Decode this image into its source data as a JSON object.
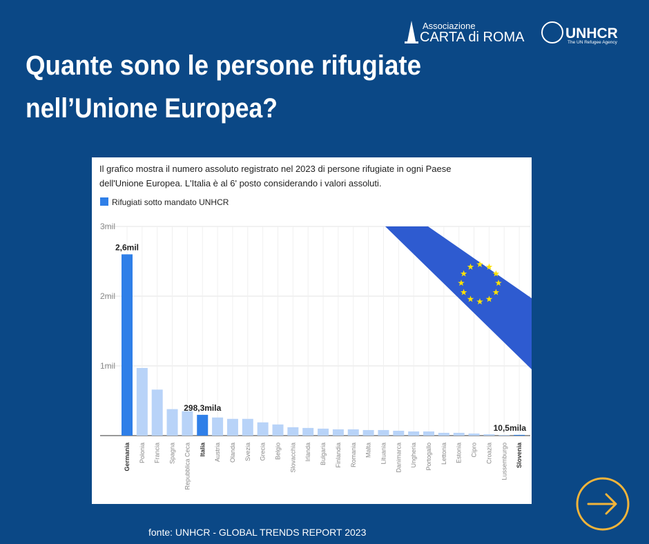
{
  "header": {
    "title": [
      "Quante sono le persone rifugiate",
      "nell’Unione Europea?"
    ]
  },
  "logos": {
    "association": "Associazione",
    "carta": "CARTA di ROMA",
    "unhcr": "UNHCR",
    "unhcr_tagline": "The UN Refugee Agency"
  },
  "chart_data": {
    "type": "bar",
    "subtitle": [
      "Il grafico mostra il numero assoluto registrato nel 2023 di persone rifugiate in ogni Paese",
      "dell'Unione Europea. L'Italia è al 6' posto considerando i valori assoluti."
    ],
    "categories": [
      "Germania",
      "Polonia",
      "Francia",
      "Spagna",
      "Repubblica Ceca",
      "Italia",
      "Austria",
      "Olanda",
      "Svezia",
      "Grecia",
      "Belgio",
      "Slovacchia",
      "Irlanda",
      "Bulgaria",
      "Finlandia",
      "Romania",
      "Malta",
      "Lituania",
      "Danimarca",
      "Ungheria",
      "Portogallo",
      "Lettonia",
      "Estonia",
      "Cipro",
      "Croazia",
      "Lussemburgo",
      "Slovenia"
    ],
    "series": [
      {
        "name": "Rifugiati sotto mandato UNHCR",
        "color": "#2f7fe8",
        "values": [
          2.6,
          0.97,
          0.66,
          0.38,
          0.35,
          0.2983,
          0.26,
          0.24,
          0.24,
          0.19,
          0.16,
          0.12,
          0.11,
          0.1,
          0.09,
          0.09,
          0.08,
          0.08,
          0.07,
          0.06,
          0.06,
          0.04,
          0.04,
          0.03,
          0.02,
          0.01,
          0.0105
        ],
        "value_labels": [
          "2,6mil",
          null,
          null,
          null,
          null,
          "298,3mila",
          null,
          null,
          null,
          null,
          null,
          null,
          null,
          null,
          null,
          null,
          null,
          null,
          null,
          null,
          null,
          null,
          null,
          null,
          null,
          null,
          "10,5mila"
        ],
        "bar_colors": [
          "#2f7fe8",
          "#b8d3f8",
          "#b8d3f8",
          "#b8d3f8",
          "#b8d3f8",
          "#2f7fe8",
          "#b8d3f8",
          "#b8d3f8",
          "#b8d3f8",
          "#b8d3f8",
          "#b8d3f8",
          "#b8d3f8",
          "#b8d3f8",
          "#b8d3f8",
          "#b8d3f8",
          "#b8d3f8",
          "#b8d3f8",
          "#b8d3f8",
          "#b8d3f8",
          "#b8d3f8",
          "#b8d3f8",
          "#b8d3f8",
          "#b8d3f8",
          "#b8d3f8",
          "#b8d3f8",
          "#b8d3f8",
          "#2f7fe8"
        ]
      }
    ],
    "ylim": [
      0,
      3
    ],
    "yticks": [
      {
        "value": 1,
        "label": "1mil"
      },
      {
        "value": 2,
        "label": "2mil"
      },
      {
        "value": 3,
        "label": "3mil"
      }
    ],
    "grid": true,
    "legend": "top-left"
  },
  "footer": {
    "source": "fonte: UNHCR - GLOBAL TRENDS REPORT 2023"
  }
}
